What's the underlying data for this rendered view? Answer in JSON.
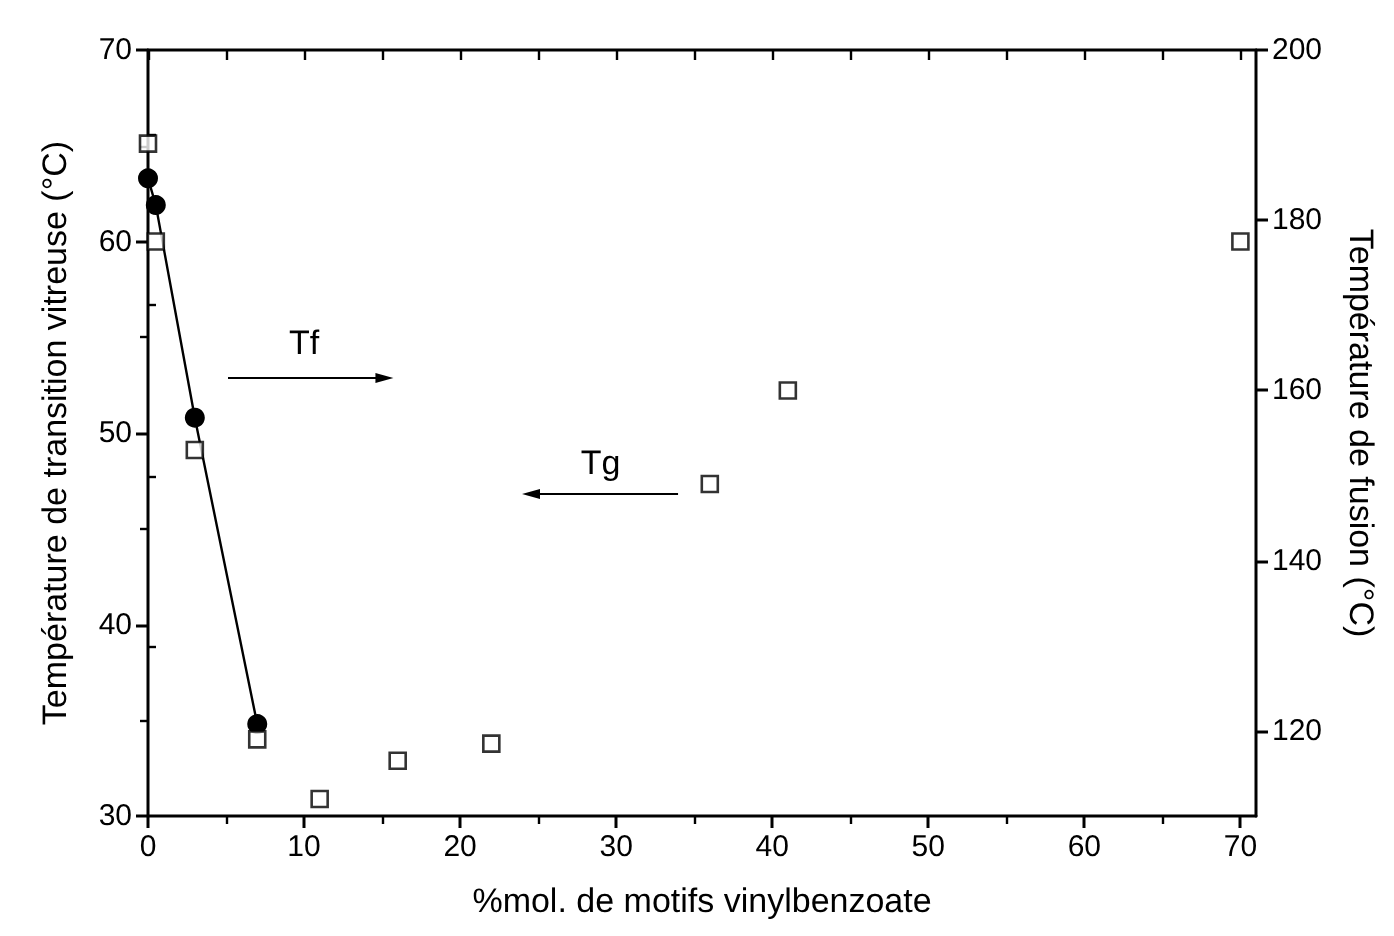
{
  "chart_data": {
    "type": "scatter",
    "xlabel": "%mol. de motifs vinylbenzoate",
    "ylabel": "Température de transition vitreuse (°C)",
    "y2label": "Température de fusion (°C)",
    "xlim": [
      0,
      71
    ],
    "xticks": [
      0,
      10,
      20,
      30,
      40,
      50,
      60,
      70
    ],
    "ylim": [
      30,
      70
    ],
    "yticks": [
      30,
      40,
      50,
      60,
      70
    ],
    "y2lim": [
      110,
      200
    ],
    "y2ticks": [
      120,
      140,
      160,
      180,
      200
    ],
    "grid": false,
    "annotations": [
      "Tf",
      "Tg"
    ],
    "series": [
      {
        "type": "line",
        "color": "#000000",
        "marker": "circle",
        "line_style": "solid",
        "x": [
          0,
          0.5,
          3,
          7
        ],
        "values": [
          63.3,
          61.9,
          50.8,
          34.8
        ]
      },
      {
        "color": "#000000",
        "marker": "square",
        "axis": "y2",
        "x": [
          0,
          0.5,
          3,
          7,
          11,
          16,
          22,
          36,
          41,
          70
        ],
        "values": [
          189,
          177.5,
          153,
          119,
          112,
          116.5,
          118.5,
          149,
          160,
          177.5
        ]
      }
    ]
  }
}
